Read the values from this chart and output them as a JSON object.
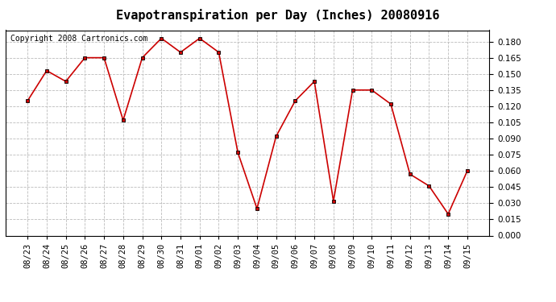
{
  "title": "Evapotranspiration per Day (Inches) 20080916",
  "copyright_text": "Copyright 2008 Cartronics.com",
  "labels": [
    "08/23",
    "08/24",
    "08/25",
    "08/26",
    "08/27",
    "08/28",
    "08/29",
    "08/30",
    "08/31",
    "09/01",
    "09/02",
    "09/03",
    "09/04",
    "09/05",
    "09/06",
    "09/07",
    "09/08",
    "09/09",
    "09/10",
    "09/11",
    "09/12",
    "09/13",
    "09/14",
    "09/15"
  ],
  "values": [
    0.125,
    0.153,
    0.143,
    0.165,
    0.165,
    0.107,
    0.165,
    0.183,
    0.17,
    0.183,
    0.17,
    0.077,
    0.025,
    0.092,
    0.125,
    0.143,
    0.032,
    0.135,
    0.135,
    0.122,
    0.057,
    0.046,
    0.02,
    0.06
  ],
  "line_color": "#cc0000",
  "marker": "s",
  "marker_size": 3,
  "ylim": [
    0.0,
    0.1905
  ],
  "yticks": [
    0.0,
    0.015,
    0.03,
    0.045,
    0.06,
    0.075,
    0.09,
    0.105,
    0.12,
    0.135,
    0.15,
    0.165,
    0.18
  ],
  "bg_color": "#ffffff",
  "grid_color": "#bbbbbb",
  "title_fontsize": 11,
  "tick_fontsize": 7.5,
  "copyright_fontsize": 7
}
